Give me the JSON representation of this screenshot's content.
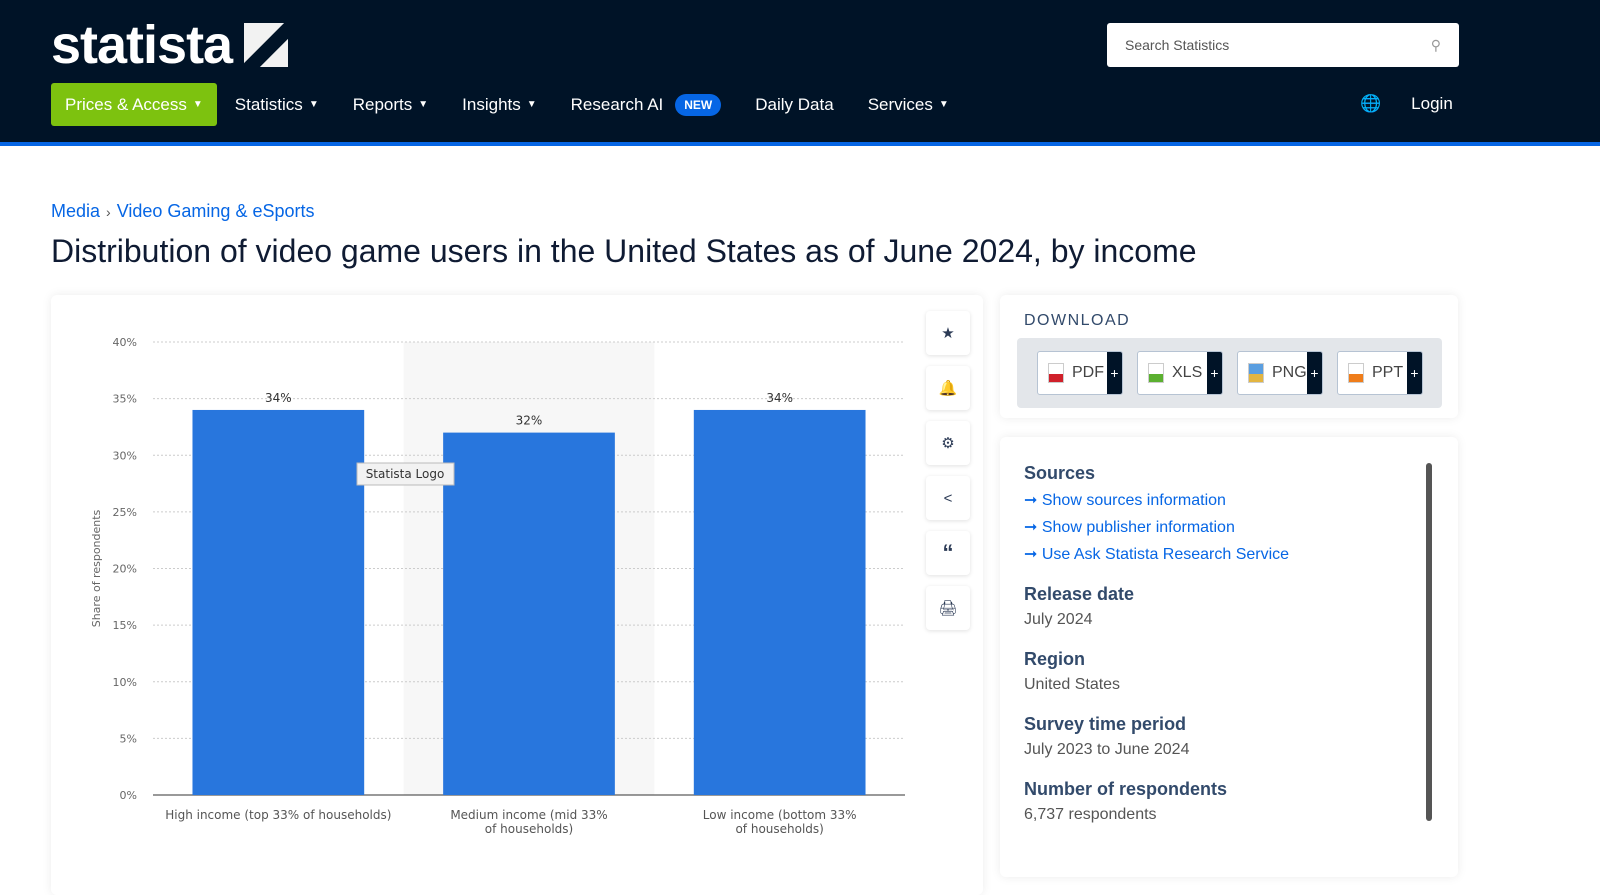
{
  "header": {
    "logo": "statista",
    "search_placeholder": "Search Statistics",
    "nav": [
      {
        "label": "Prices & Access"
      },
      {
        "label": "Statistics"
      },
      {
        "label": "Reports"
      },
      {
        "label": "Insights"
      },
      {
        "label": "Research AI",
        "badge": "NEW"
      },
      {
        "label": "Daily Data"
      },
      {
        "label": "Services"
      }
    ],
    "login": "Login"
  },
  "breadcrumb": [
    "Media",
    "Video Gaming & eSports"
  ],
  "title": "Distribution of video game users in the United States as of June 2024, by income",
  "tooltip": "Statista Logo",
  "download": {
    "title": "DOWNLOAD",
    "buttons": [
      "PDF",
      "XLS",
      "PNG",
      "PPT"
    ]
  },
  "info": {
    "sources_title": "Sources",
    "links": [
      "Show sources information",
      "Show publisher information",
      "Use Ask Statista Research Service"
    ],
    "release_label": "Release date",
    "release": "July 2024",
    "region_label": "Region",
    "region": "United States",
    "period_label": "Survey time period",
    "period": "July 2023 to June 2024",
    "resp_label": "Number of respondents",
    "resp": "6,737 respondents"
  },
  "colors": {
    "bar": "#2876dd",
    "header": "#001327",
    "accent": "#7dc20f",
    "link": "#0666e5"
  },
  "chart_data": {
    "type": "bar",
    "categories": [
      "High income (top 33% of households)",
      "Medium income (mid 33% of households)",
      "Low income (bottom 33% of households)"
    ],
    "values": [
      34,
      32,
      34
    ],
    "data_labels": [
      "34%",
      "32%",
      "34%"
    ],
    "ylabel": "Share of respondents",
    "ylim": [
      0,
      40
    ],
    "yticks": [
      "0%",
      "5%",
      "10%",
      "15%",
      "20%",
      "25%",
      "30%",
      "35%",
      "40%"
    ],
    "grid": true
  }
}
